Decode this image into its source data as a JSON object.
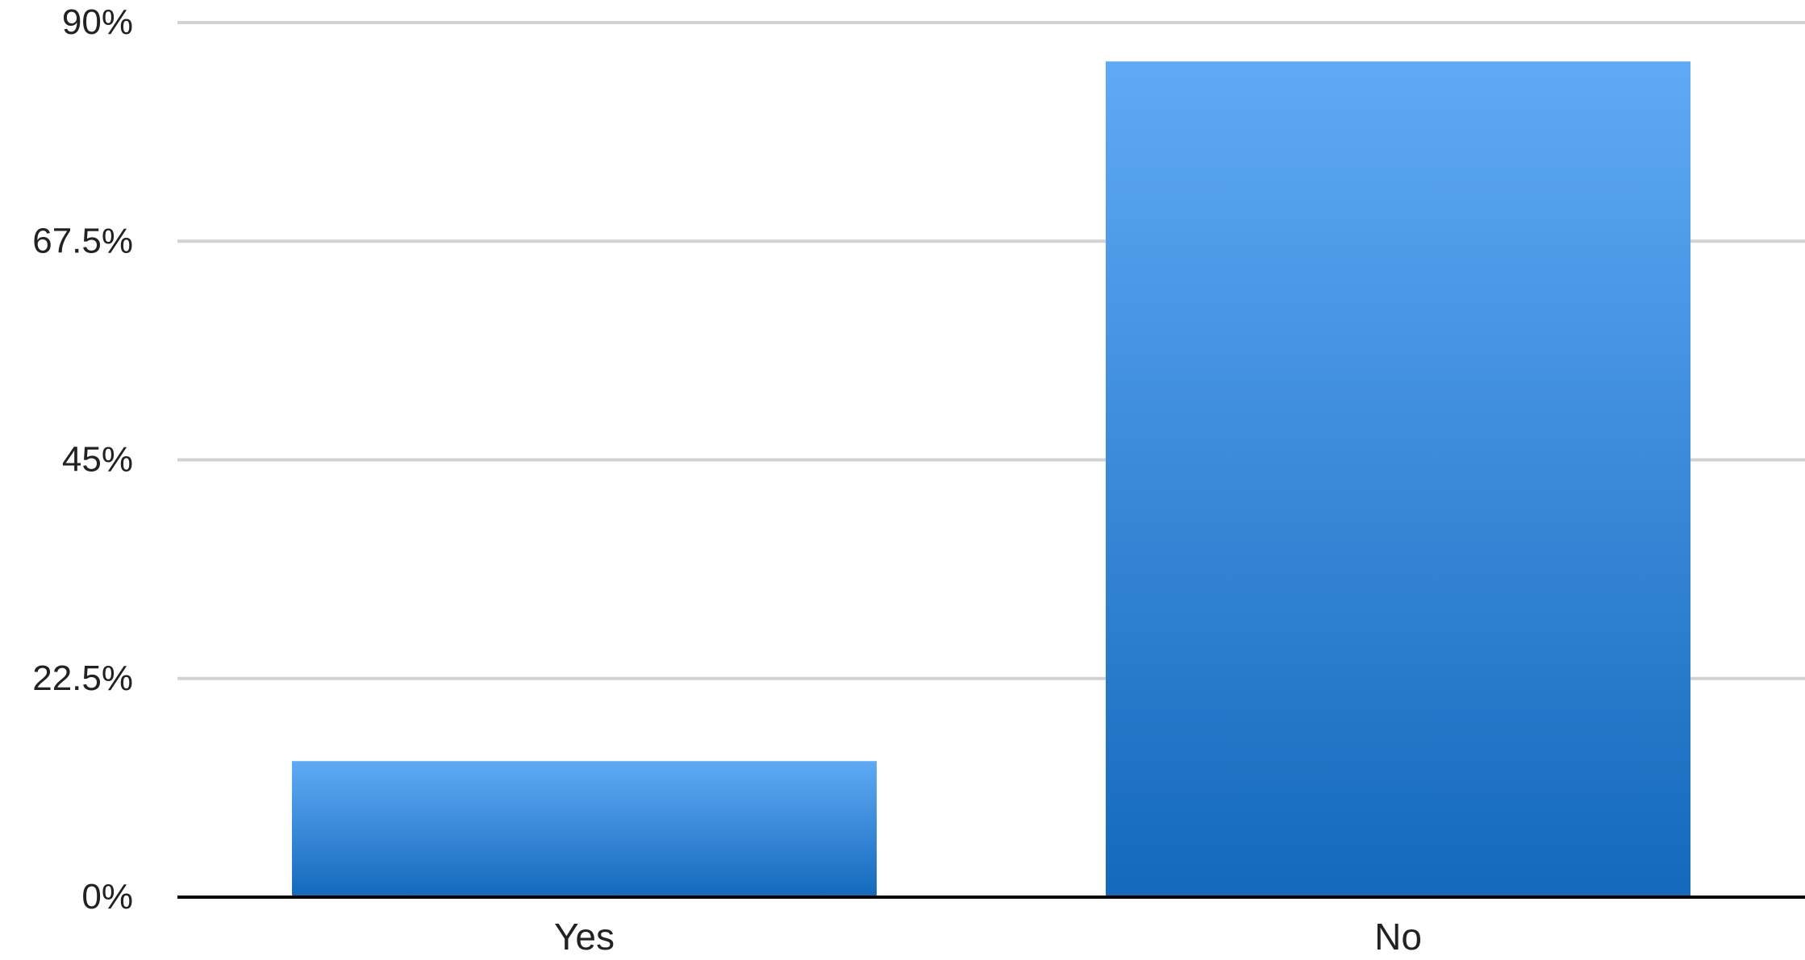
{
  "chart_data": {
    "type": "bar",
    "categories": [
      "Yes",
      "No"
    ],
    "values": [
      14,
      86
    ],
    "ylim": [
      0,
      90
    ],
    "y_ticks": [
      0,
      22.5,
      45,
      67.5,
      90
    ],
    "y_tick_labels": [
      "0%",
      "22.5%",
      "45%",
      "67.5%",
      "90%"
    ],
    "grid": true,
    "legend": "none",
    "colors": {
      "bar_top": "#5faaf6",
      "bar_bottom": "#1469bb",
      "grid": "#d2d2d2",
      "axis": "#000000",
      "text": "#222222"
    }
  }
}
